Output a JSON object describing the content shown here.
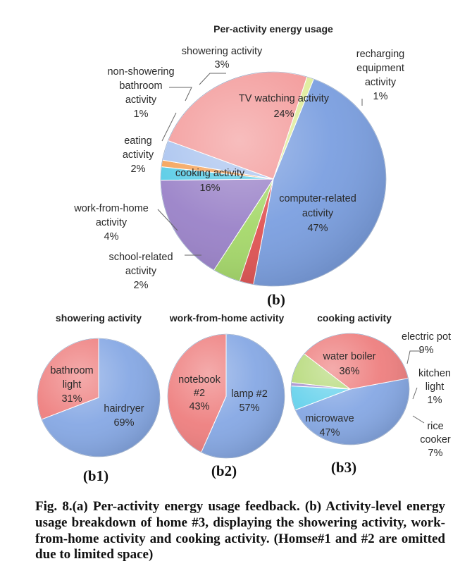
{
  "chart_data": [
    {
      "type": "pie",
      "title": "Per-activity energy usage",
      "panel_label": "(b)",
      "slices": [
        {
          "label": "computer-related activity",
          "value": 47,
          "color": "#7b9fe0"
        },
        {
          "label": "school-related activity",
          "value": 2,
          "color": "#e05454"
        },
        {
          "label": "work-from-home activity",
          "value": 4,
          "color": "#a5d86a"
        },
        {
          "label": "cooking activity",
          "value": 16,
          "color": "#9a82c8"
        },
        {
          "label": "eating activity",
          "value": 2,
          "color": "#55cbe6"
        },
        {
          "label": "non-showering bathroom activity",
          "value": 1,
          "color": "#f5a156"
        },
        {
          "label": "showering activity",
          "value": 3,
          "color": "#a9c3ef"
        },
        {
          "label": "TV watching activity",
          "value": 24,
          "color": "#f39a9a"
        },
        {
          "label": "recharging equipment activity",
          "value": 1,
          "color": "#dfec9c"
        }
      ]
    },
    {
      "type": "pie",
      "title": "showering activity",
      "panel_label": "(b1)",
      "slices": [
        {
          "label": "hairdryer",
          "value": 69,
          "color": "#86a8e4"
        },
        {
          "label": "bathroom light",
          "value": 31,
          "color": "#ee7f7f"
        }
      ]
    },
    {
      "type": "pie",
      "title": "work-from-home activity",
      "panel_label": "(b2)",
      "slices": [
        {
          "label": "lamp #2",
          "value": 57,
          "color": "#86a8e4"
        },
        {
          "label": "notebook #2",
          "value": 43,
          "color": "#ee7f7f"
        }
      ]
    },
    {
      "type": "pie",
      "title": "cooking activity",
      "panel_label": "(b3)",
      "slices": [
        {
          "label": "microwave",
          "value": 47,
          "color": "#86a8e4"
        },
        {
          "label": "water boiler",
          "value": 36,
          "color": "#ee7f7f"
        },
        {
          "label": "electric pot",
          "value": 9,
          "color": "#b5d978"
        },
        {
          "label": "kitchen light",
          "value": 1,
          "color": "#a892cf"
        },
        {
          "label": "rice cooker",
          "value": 7,
          "color": "#67d2ec"
        }
      ]
    }
  ],
  "labels": {
    "main": [
      {
        "lines": [
          "showering activity",
          "3%"
        ]
      },
      {
        "lines": [
          "recharging",
          "equipment",
          "activity",
          "1%"
        ]
      },
      {
        "lines": [
          "non-showering",
          "bathroom",
          "activity",
          "1%"
        ]
      },
      {
        "lines": [
          "TV watching activity",
          "24%"
        ]
      },
      {
        "lines": [
          "eating",
          "activity",
          "2%"
        ]
      },
      {
        "lines": [
          "cooking activity",
          "16%"
        ]
      },
      {
        "lines": [
          "computer-related",
          "activity",
          "47%"
        ]
      },
      {
        "lines": [
          "work-from-home",
          "activity",
          "4%"
        ]
      },
      {
        "lines": [
          "school-related",
          "activity",
          "2%"
        ]
      }
    ],
    "b1": [
      {
        "lines": [
          "bathroom",
          "light",
          "31%"
        ]
      },
      {
        "lines": [
          "hairdryer",
          "69%"
        ]
      }
    ],
    "b2": [
      {
        "lines": [
          "notebook",
          "#2",
          "43%"
        ]
      },
      {
        "lines": [
          "lamp #2",
          "57%"
        ]
      }
    ],
    "b3": [
      {
        "lines": [
          "electric pot",
          "9%"
        ]
      },
      {
        "lines": [
          "water boiler",
          "36%"
        ]
      },
      {
        "lines": [
          "kitchen",
          "light",
          "1%"
        ]
      },
      {
        "lines": [
          "microwave",
          "47%"
        ]
      },
      {
        "lines": [
          "rice",
          "cooker",
          "7%"
        ]
      }
    ]
  },
  "caption": "Fig. 8.(a) Per-activity energy usage feedback. (b) Activity-level energy usage breakdown of home #3, displaying the showering activity, work-from-home activity and cooking activity. (Homse#1 and #2 are omitted due to limited space)"
}
